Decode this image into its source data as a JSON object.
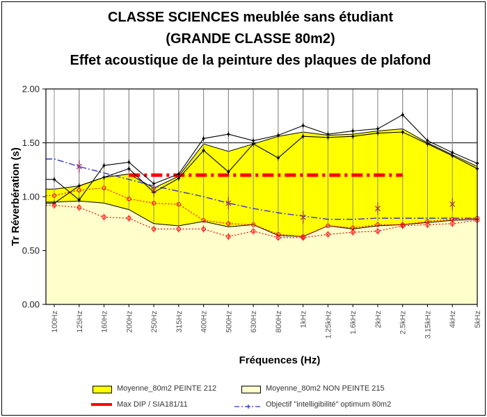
{
  "chart_data": {
    "type": "area",
    "title_lines": [
      "CLASSE SCIENCES meublée sans étudiant",
      "(GRANDE CLASSE 80m2)",
      "Effet acoustique de la peinture des plaques de plafond"
    ],
    "xlabel": "Fréquences (Hz)",
    "ylabel": "Tr Réverbération (s)",
    "ylim": [
      0,
      2
    ],
    "y_ticks": [
      0,
      0.5,
      1,
      1.5,
      2
    ],
    "grid": "both",
    "legend_position": "bottom",
    "categories": [
      "100Hz",
      "125Hz",
      "160Hz",
      "200Hz",
      "250Hz",
      "315Hz",
      "400Hz",
      "500Hz",
      "630Hz",
      "800Hz",
      "1kHz",
      "1.25kHz",
      "1.6kHz",
      "2kHz",
      "2.5kHz",
      "3.15kHz",
      "4kHz",
      "5kHz"
    ],
    "series": [
      {
        "id": "moyenne_peinte",
        "label": "Moyenne_80m2 PEINTE 212",
        "type": "area",
        "color": "#ffff00",
        "values": [
          1.07,
          1.1,
          1.18,
          1.21,
          1.08,
          1.19,
          1.49,
          1.42,
          1.49,
          1.56,
          1.6,
          1.57,
          1.58,
          1.61,
          1.63,
          1.5,
          1.39,
          1.28
        ]
      },
      {
        "id": "moyenne_non_peinte",
        "label": "Moyenne_80m2 NON PEINTE 215",
        "type": "area",
        "color": "#ffffcc",
        "values": [
          0.95,
          0.96,
          0.94,
          0.88,
          0.75,
          0.73,
          0.77,
          0.72,
          0.74,
          0.64,
          0.63,
          0.73,
          0.7,
          0.73,
          0.74,
          0.76,
          0.78,
          0.79
        ]
      },
      {
        "id": "max_dip",
        "label": "Max DIP / SIA181/11",
        "type": "hline",
        "color": "#ff0000",
        "value": 1.2,
        "from": "200Hz",
        "to": "2.5kHz"
      },
      {
        "id": "objectif",
        "label": "Objectif \"intelligibilité\" optimum 80m2",
        "type": "line",
        "style": "dashdot",
        "color": "#3333cc",
        "values": [
          1.35,
          1.28,
          1.22,
          1.16,
          1.1,
          1.05,
          1.0,
          0.94,
          0.89,
          0.85,
          0.82,
          0.79,
          0.79,
          0.8,
          0.8,
          0.8,
          0.8,
          0.8
        ]
      },
      {
        "id": "mesure_noire_1",
        "label": "",
        "type": "line",
        "style": "solid",
        "color": "#000000",
        "marker": "diamond",
        "values": [
          1.16,
          0.97,
          1.29,
          1.32,
          1.12,
          1.21,
          1.54,
          1.58,
          1.52,
          1.57,
          1.66,
          1.58,
          1.61,
          1.63,
          1.76,
          1.52,
          1.41,
          1.31
        ]
      },
      {
        "id": "mesure_noire_2",
        "label": "",
        "type": "line",
        "style": "solid",
        "color": "#000000",
        "marker": "diamond",
        "values": [
          0.94,
          1.1,
          1.18,
          1.26,
          1.04,
          1.17,
          1.43,
          1.23,
          1.49,
          1.36,
          1.56,
          1.55,
          1.56,
          1.59,
          1.6,
          1.49,
          1.38,
          1.26
        ]
      },
      {
        "id": "mesure_rouge_1",
        "label": "",
        "type": "line",
        "style": "dotted",
        "color": "#ff0000",
        "marker": "circle",
        "values": [
          1.01,
          1.06,
          1.08,
          0.98,
          0.94,
          0.93,
          0.78,
          0.75,
          0.74,
          0.65,
          0.63,
          0.73,
          0.71,
          0.74,
          0.74,
          0.77,
          0.79,
          0.8
        ]
      },
      {
        "id": "mesure_rouge_2",
        "label": "",
        "type": "line",
        "style": "dotted",
        "color": "#ff0000",
        "marker": "circle-bar",
        "values": [
          0.92,
          0.9,
          0.81,
          0.8,
          0.7,
          0.7,
          0.7,
          0.63,
          0.68,
          0.62,
          0.62,
          0.65,
          0.67,
          0.68,
          0.73,
          0.74,
          0.75,
          0.78
        ]
      },
      {
        "id": "points_octave",
        "label": "",
        "type": "points",
        "color": "#993366",
        "marker": "x-bar",
        "points": [
          [
            "125Hz",
            1.28
          ],
          [
            "250Hz",
            1.06
          ],
          [
            "500Hz",
            0.94
          ],
          [
            "1kHz",
            0.81
          ],
          [
            "2kHz",
            0.89
          ],
          [
            "4kHz",
            0.93
          ]
        ]
      }
    ]
  }
}
